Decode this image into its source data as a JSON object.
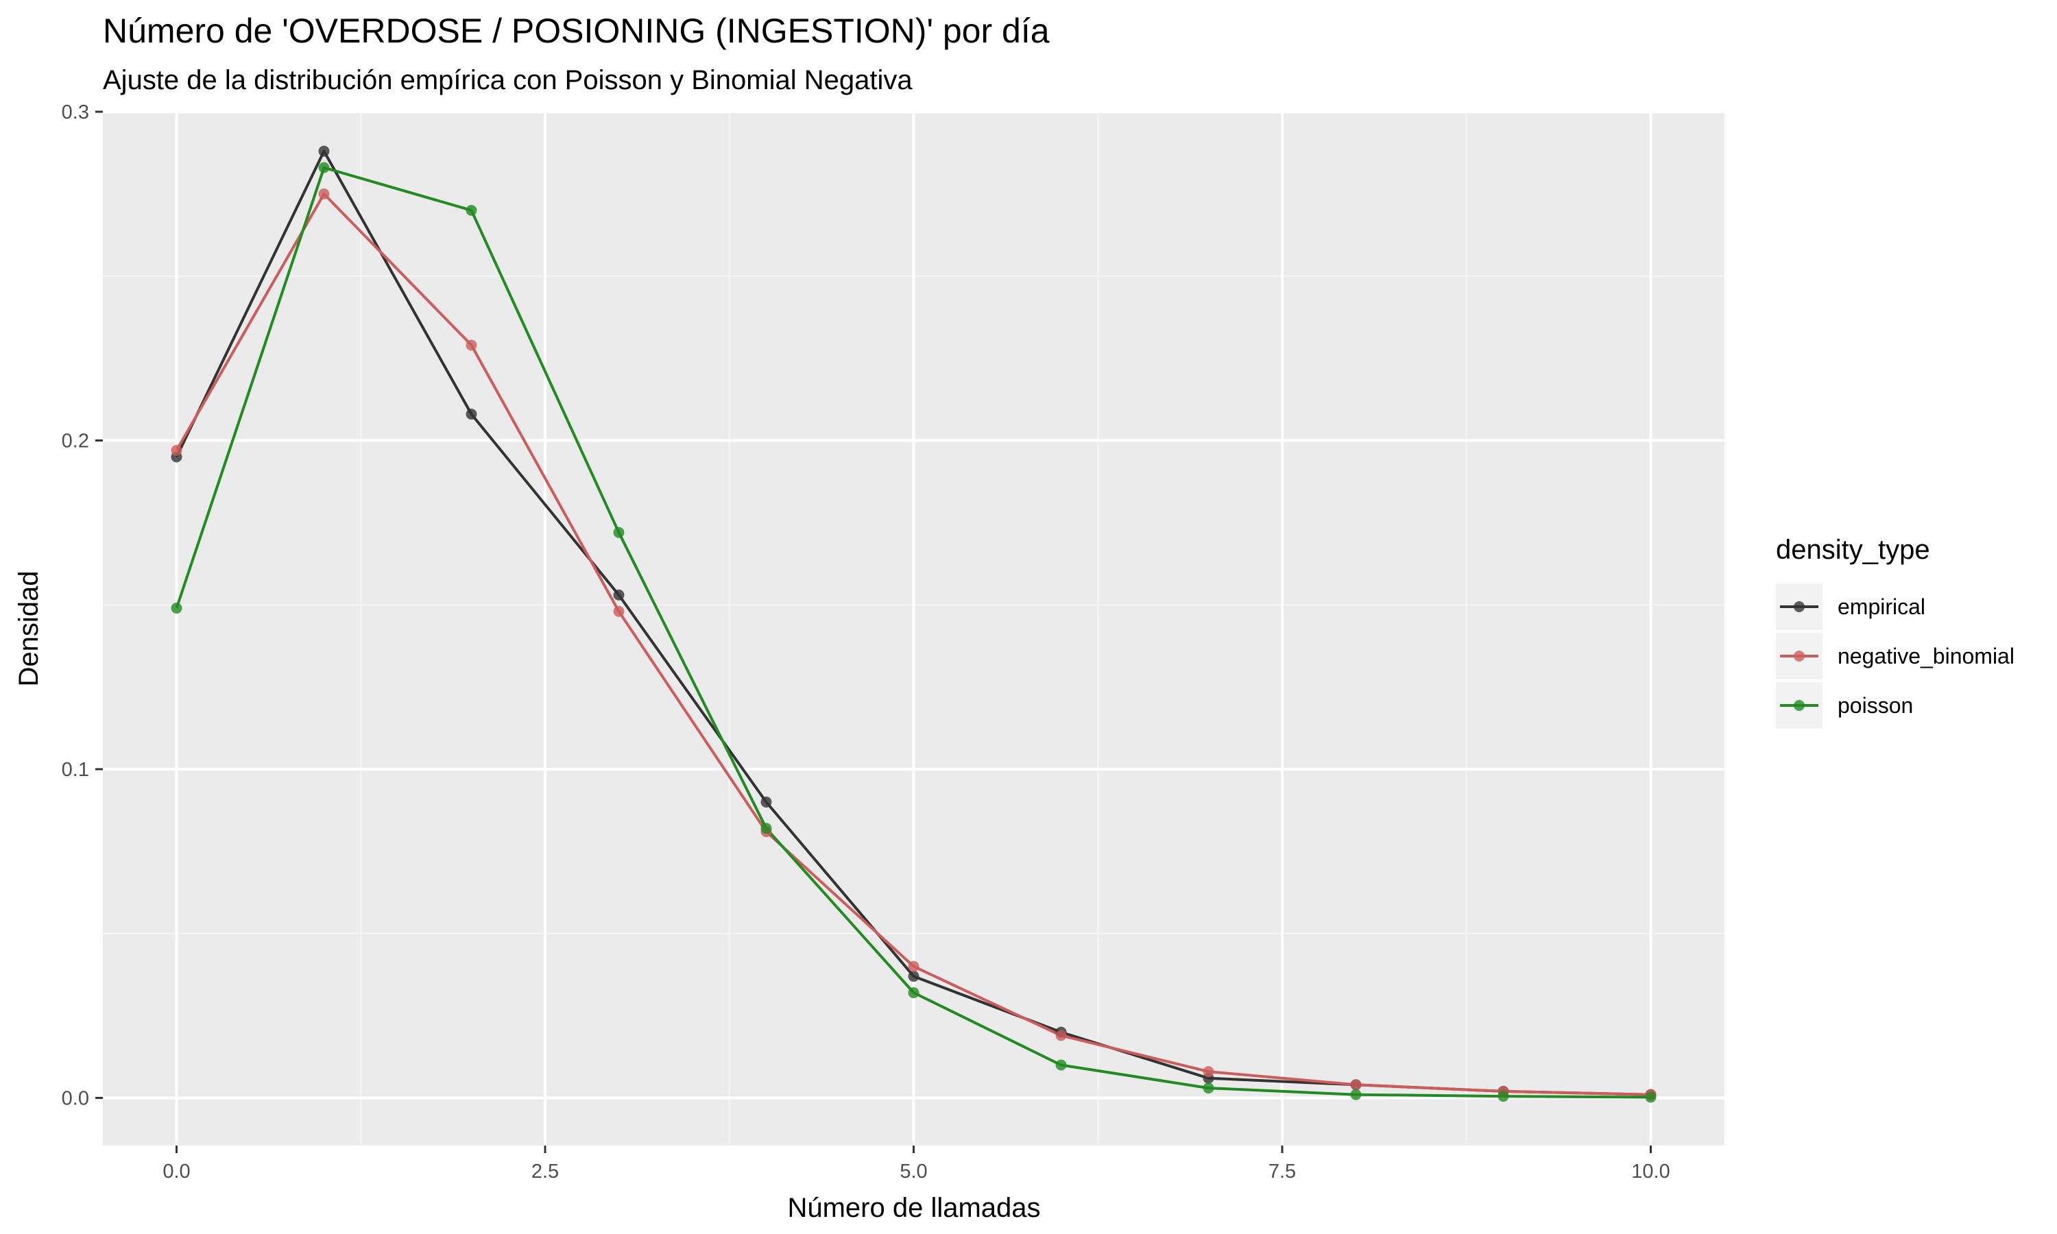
{
  "chart_data": {
    "type": "line",
    "title": "Número de 'OVERDOSE / POSIONING (INGESTION)' por día",
    "subtitle": "Ajuste de la distribución empírica con Poisson y Binomial Negativa",
    "xlabel": "Número de llamadas",
    "ylabel": "Densidad",
    "xlim": [
      -0.5,
      10.5
    ],
    "ylim": [
      -0.0145,
      0.3
    ],
    "x_ticks": [
      0,
      2.5,
      5,
      7.5,
      10
    ],
    "x_tick_labels": [
      "0.0",
      "2.5",
      "5.0",
      "7.5",
      "10.0"
    ],
    "y_ticks": [
      0,
      0.1,
      0.2,
      0.3
    ],
    "y_tick_labels": [
      "0.0",
      "0.1",
      "0.2",
      "0.3"
    ],
    "grid": true,
    "legend": {
      "title": "density_type",
      "position": "right"
    },
    "x": [
      0,
      1,
      2,
      3,
      4,
      5,
      6,
      7,
      8,
      9,
      10
    ],
    "series": [
      {
        "name": "empirical",
        "color": "#333333",
        "values": [
          0.195,
          0.288,
          0.208,
          0.153,
          0.09,
          0.037,
          0.02,
          0.006,
          0.004,
          0.002,
          0.001
        ]
      },
      {
        "name": "negative_binomial",
        "color": "#cd5c5c",
        "values": [
          0.197,
          0.275,
          0.229,
          0.148,
          0.081,
          0.04,
          0.019,
          0.008,
          0.004,
          0.002,
          0.001
        ]
      },
      {
        "name": "poisson",
        "color": "#228b22",
        "values": [
          0.149,
          0.283,
          0.27,
          0.172,
          0.082,
          0.032,
          0.01,
          0.003,
          0.001,
          0.0005,
          0.0002
        ]
      }
    ]
  }
}
